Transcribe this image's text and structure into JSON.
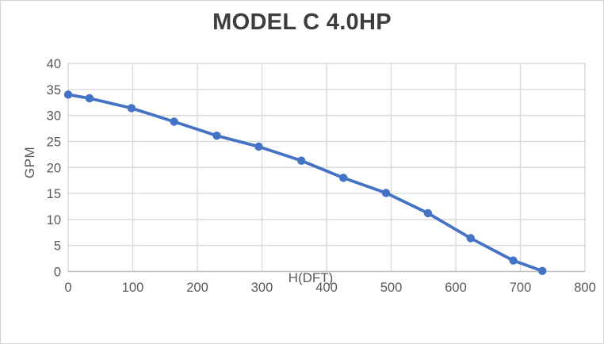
{
  "chart": {
    "title": "MODEL C 4.0HP",
    "x_axis_title": "H(DFT)",
    "y_axis_title": "GPM"
  },
  "chart_data": {
    "type": "line",
    "title": "MODEL C 4.0HP",
    "xlabel": "H(DFT)",
    "ylabel": "GPM",
    "x": [
      0,
      33,
      98,
      164,
      230,
      295,
      361,
      426,
      492,
      557,
      623,
      689,
      734
    ],
    "y": [
      34,
      33.3,
      31.4,
      28.8,
      26.1,
      24,
      21.3,
      18,
      15.1,
      11.2,
      6.4,
      2.1,
      0.1
    ],
    "xlim": [
      0,
      800
    ],
    "ylim": [
      0,
      40
    ],
    "x_ticks": [
      0,
      100,
      200,
      300,
      400,
      500,
      600,
      700,
      800
    ],
    "y_ticks": [
      0,
      5,
      10,
      15,
      20,
      25,
      30,
      35,
      40
    ],
    "grid": true,
    "legend": "none",
    "marker": "circle",
    "colors": {
      "series": "#4472C4",
      "gridline": "#d9d9d9",
      "axis_line": "#bfbfbf",
      "tick_label": "#595959",
      "axis_title": "#595959",
      "title": "#3d3d3d",
      "background": "#ffffff",
      "frame_border": "#d4d4d4"
    }
  }
}
